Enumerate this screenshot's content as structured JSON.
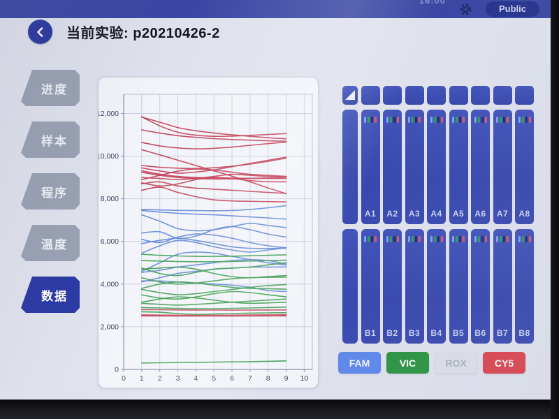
{
  "status_bar": {
    "time": "16:00",
    "public_button": "Public"
  },
  "header": {
    "title": "当前实验: p20210426-2",
    "back_icon": "‹"
  },
  "sidebar": {
    "items": [
      {
        "name": "progress",
        "label": "进度",
        "active": false
      },
      {
        "name": "samples",
        "label": "样本",
        "active": false
      },
      {
        "name": "program",
        "label": "程序",
        "active": false
      },
      {
        "name": "temperature",
        "label": "温度",
        "active": false
      },
      {
        "name": "data",
        "label": "数据",
        "active": true
      }
    ]
  },
  "chart_data": {
    "type": "line",
    "title": "",
    "xlabel": "",
    "ylabel": "",
    "x": [
      1,
      2,
      3,
      4,
      5,
      6,
      7,
      8,
      9
    ],
    "xlim": [
      0,
      10.45
    ],
    "ylim": [
      0,
      12900
    ],
    "x_ticks": [
      0,
      1,
      2,
      3,
      4,
      5,
      6,
      7,
      8,
      9,
      10
    ],
    "y_ticks": [
      0,
      2000,
      4000,
      6000,
      8000,
      10000,
      12000
    ],
    "y_tick_labels": [
      "0",
      "2,000",
      "4,000",
      "6,000",
      "8,000",
      "10,000",
      "12,000"
    ],
    "grid": true,
    "legend_position": "none",
    "groups": [
      {
        "channel": "CY5",
        "color": "#c23a52",
        "series": [
          [
            11850,
            11420,
            11120,
            10980,
            10930,
            10940,
            10975,
            11015,
            11060
          ],
          [
            11830,
            11590,
            11340,
            11190,
            11085,
            11000,
            10930,
            10865,
            10810
          ],
          [
            11230,
            11080,
            10960,
            10880,
            10820,
            10780,
            10750,
            10720,
            10695
          ],
          [
            10640,
            10480,
            10385,
            10340,
            10365,
            10425,
            10505,
            10585,
            10660
          ],
          [
            10300,
            10060,
            9810,
            9560,
            9310,
            9060,
            8790,
            8510,
            8240
          ],
          [
            9560,
            9480,
            9435,
            9420,
            9455,
            9525,
            9625,
            9755,
            9905
          ],
          [
            9450,
            9305,
            9205,
            9255,
            9355,
            9505,
            9655,
            9805,
            9950
          ],
          [
            9310,
            9155,
            9050,
            9000,
            8980,
            8968,
            8958,
            8952,
            8950
          ],
          [
            9240,
            9100,
            9000,
            8950,
            8930,
            8932,
            8950,
            8978,
            9005
          ],
          [
            9000,
            8950,
            8905,
            8955,
            9050,
            9148,
            9098,
            9050,
            9048
          ],
          [
            8900,
            9100,
            9295,
            9395,
            9348,
            9248,
            9148,
            9098,
            9050
          ],
          [
            8750,
            8600,
            8700,
            8900,
            8998,
            8950,
            8850,
            8800,
            8798
          ],
          [
            8700,
            8795,
            8600,
            8500,
            8450,
            8400,
            8350,
            8300,
            8250
          ],
          [
            8400,
            8545,
            8300,
            8100,
            7950,
            7900,
            7880,
            7868,
            7852
          ],
          [
            2800,
            2798,
            2790,
            2785,
            2782,
            2780,
            2782,
            2786,
            2790
          ],
          [
            2555,
            2548,
            2542,
            2540,
            2540,
            2545,
            2550,
            2556,
            2562
          ],
          [
            2510,
            2506,
            2503,
            2501,
            2500,
            2502,
            2505,
            2508,
            2512
          ]
        ]
      },
      {
        "channel": "FAM",
        "color": "#5b82d8",
        "series": [
          [
            7500,
            7478,
            7458,
            7448,
            7440,
            7452,
            7500,
            7580,
            7680
          ],
          [
            7450,
            7380,
            7320,
            7278,
            7248,
            7200,
            7150,
            7100,
            7048
          ],
          [
            7250,
            6950,
            6600,
            6500,
            6552,
            6700,
            6848,
            6750,
            6650
          ],
          [
            6400,
            6452,
            6150,
            6252,
            6550,
            6700,
            6548,
            6350,
            6200
          ],
          [
            6100,
            5950,
            6200,
            6350,
            6298,
            6150,
            5950,
            5800,
            5700
          ],
          [
            5900,
            6050,
            6148,
            6048,
            5900,
            5750,
            5680,
            5670,
            5682
          ],
          [
            5450,
            5800,
            6050,
            5948,
            5750,
            5600,
            5500,
            5600,
            5702
          ],
          [
            4600,
            5000,
            5400,
            5500,
            5448,
            5300,
            5150,
            5000,
            4900
          ],
          [
            4550,
            4650,
            4800,
            4900,
            5000,
            5100,
            5148,
            5100,
            4950
          ],
          [
            4150,
            4148,
            4100,
            4050,
            4000,
            3950,
            3850,
            3700,
            3650
          ],
          [
            4100,
            4300,
            4500,
            4600,
            4700,
            4750,
            4798,
            4800,
            4802
          ]
        ]
      },
      {
        "channel": "VIC",
        "color": "#389a49",
        "series": [
          [
            5400,
            5350,
            5320,
            5300,
            5300,
            5310,
            5330,
            5350,
            5372
          ],
          [
            5100,
            5080,
            5060,
            5050,
            5050,
            5060,
            5080,
            5100,
            5122
          ],
          [
            4750,
            4500,
            4400,
            4550,
            4700,
            4752,
            4800,
            4900,
            5000
          ],
          [
            4700,
            4750,
            4800,
            4700,
            4500,
            4350,
            4300,
            4350,
            4400
          ],
          [
            4300,
            4100,
            4000,
            4050,
            4150,
            4250,
            4300,
            4320,
            4322
          ],
          [
            3800,
            4000,
            4100,
            4050,
            3950,
            3850,
            3800,
            3780,
            3762
          ],
          [
            3750,
            3600,
            3500,
            3550,
            3650,
            3750,
            3850,
            3930,
            3980
          ],
          [
            3500,
            3350,
            3300,
            3400,
            3550,
            3650,
            3600,
            3500,
            3400
          ],
          [
            3150,
            3300,
            3400,
            3350,
            3250,
            3150,
            3100,
            3120,
            3150
          ],
          [
            3100,
            3050,
            3020,
            3050,
            3100,
            3150,
            3200,
            3250,
            3300
          ],
          [
            2900,
            2880,
            2860,
            2850,
            2850,
            2860,
            2880,
            2900,
            2920
          ],
          [
            2700,
            2680,
            2620,
            2580,
            2600,
            2620,
            2640,
            2650,
            2660
          ],
          [
            300,
            312,
            322,
            332,
            342,
            352,
            362,
            380,
            400
          ]
        ]
      }
    ]
  },
  "wells": {
    "row_a_labels": [
      "A1",
      "A2",
      "A3",
      "A4",
      "A5",
      "A6",
      "A7",
      "A8"
    ],
    "row_b_labels": [
      "B1",
      "B2",
      "B3",
      "B4",
      "B5",
      "B6",
      "B7",
      "B8"
    ],
    "indicator_colors": [
      "#76a4f2",
      "#33a04a",
      "#1c2b72",
      "#e15865"
    ],
    "column_color": "#3b4db2"
  },
  "legend": {
    "channels": [
      {
        "label": "FAM",
        "bg": "#5e88ea",
        "fg": "#eef3ff",
        "enabled": true
      },
      {
        "label": "VIC",
        "bg": "#2b9442",
        "fg": "#ffffff",
        "enabled": true
      },
      {
        "label": "ROX",
        "bg": "#dcdfe6",
        "fg": "#a9b0bf",
        "enabled": false
      },
      {
        "label": "CY5",
        "bg": "#d9454f",
        "fg": "#ffffff",
        "enabled": true
      }
    ]
  },
  "icons": {
    "back": "chevron-left",
    "settings": "gear",
    "select_all": "triangle"
  }
}
